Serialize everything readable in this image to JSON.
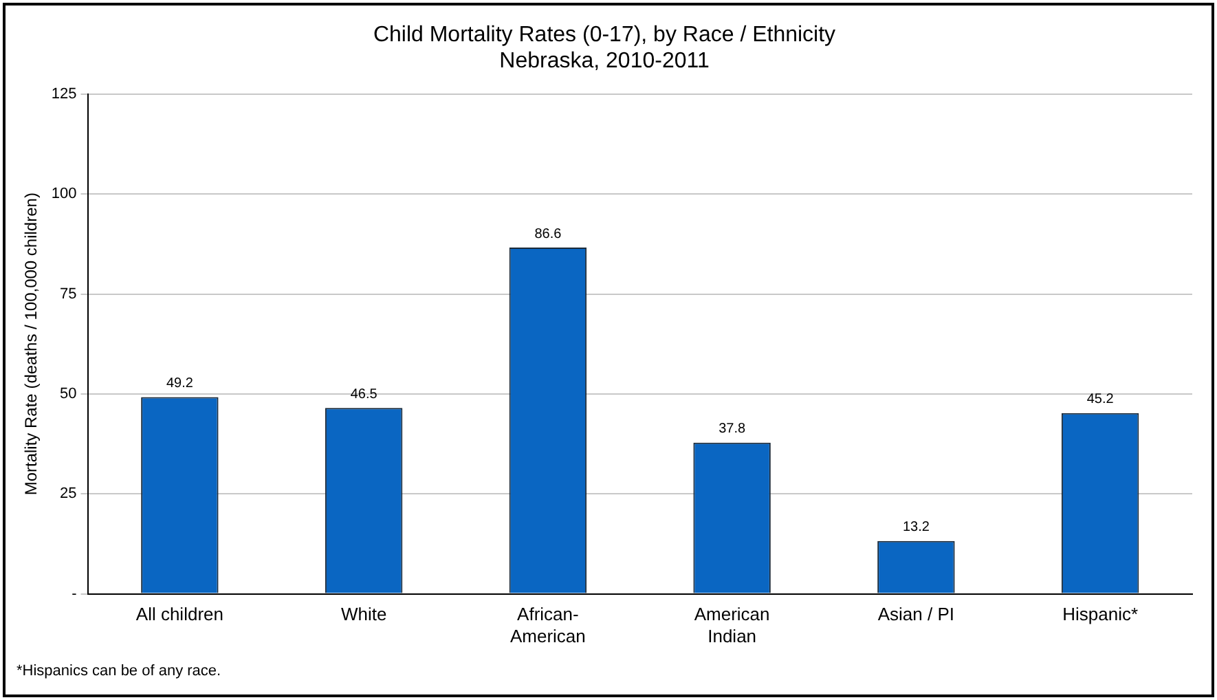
{
  "chart_data": {
    "type": "bar",
    "title": "Child Mortality Rates (0-17), by Race / Ethnicity",
    "subtitle": "Nebraska, 2010-2011",
    "ylabel": "Mortality Rate (deaths / 100,000 children)",
    "categories": [
      "All children",
      "White",
      "African-American",
      "American Indian",
      "Asian / PI",
      "Hispanic*"
    ],
    "values": [
      49.2,
      46.5,
      86.6,
      37.8,
      13.2,
      45.2
    ],
    "color": "#0a66c2",
    "ylim": [
      0,
      125
    ],
    "yticks": [
      {
        "value": 0,
        "label": "-"
      },
      25,
      50,
      75,
      100,
      125
    ],
    "grid": "y",
    "data_labels": true,
    "annotations": [
      "*Hispanics can be of any race."
    ]
  }
}
